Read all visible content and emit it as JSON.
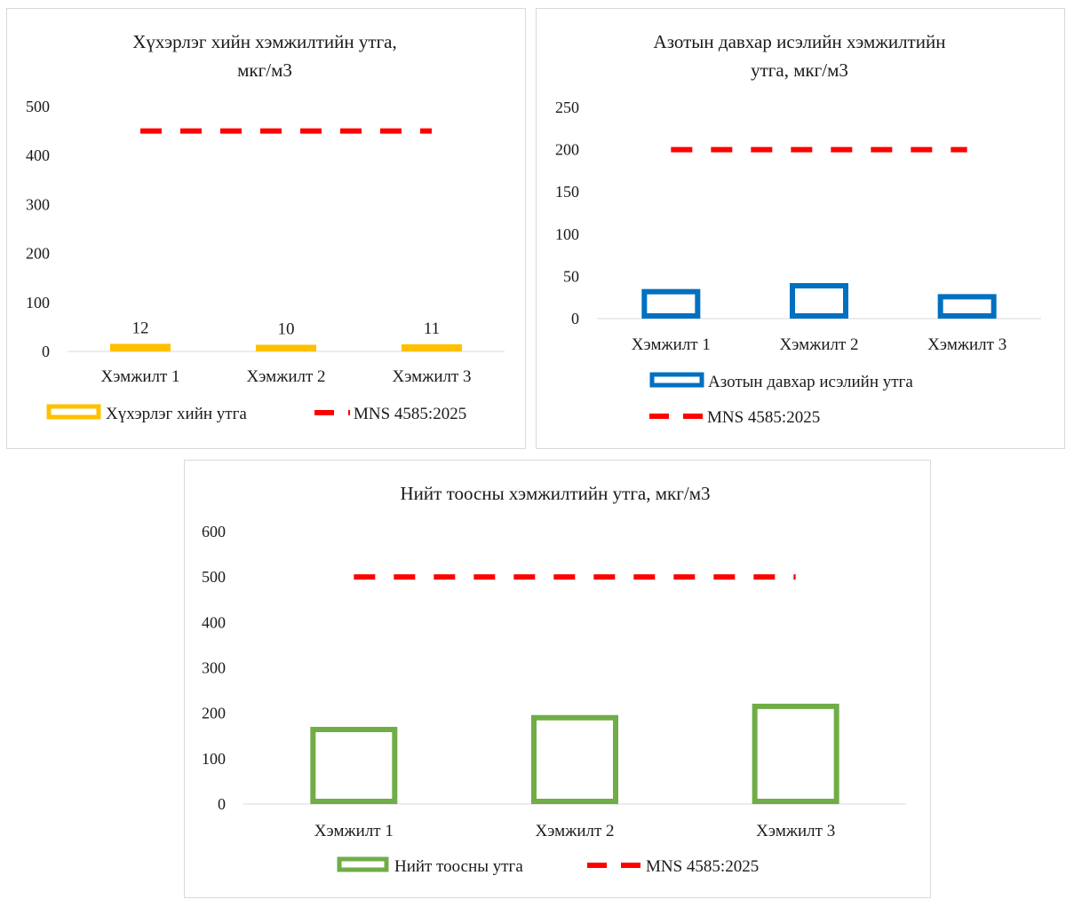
{
  "colors": {
    "yellow_series": "#ffc000",
    "blue_series": "#0070c0",
    "green_series": "#70ad47",
    "standard_line": "#ff0000",
    "axis": "#d9d9d9",
    "text": "#1a1a1a"
  },
  "chart_data": [
    {
      "type": "bar",
      "title": "Хүхэрлэг хийн хэмжилтийн утга, мкг/м3",
      "title_lines": [
        "Хүхэрлэг хийн хэмжилтийн утга,",
        "мкг/м3"
      ],
      "categories": [
        "Хэмжилт 1",
        "Хэмжилт 2",
        "Хэмжилт 3"
      ],
      "series": [
        {
          "name": "Хүхэрлэг хийн утга",
          "kind": "bar",
          "values": [
            12,
            10,
            11
          ],
          "color": "#ffc000",
          "data_labels": true
        },
        {
          "name": "MNS 4585:2025",
          "kind": "line-dashed",
          "values": [
            450,
            450,
            450
          ],
          "color": "#ff0000",
          "data_labels": false
        }
      ],
      "ylim": [
        0,
        500
      ],
      "yticks": [
        0,
        100,
        200,
        300,
        400,
        500
      ],
      "grid": false,
      "legend_position": "bottom"
    },
    {
      "type": "bar",
      "title": "Азотын давхар исэлийн хэмжилтийн утга, мкг/м3",
      "title_lines": [
        "Азотын давхар исэлийн хэмжилтийн",
        "утга, мкг/м3"
      ],
      "categories": [
        "Хэмжилт 1",
        "Хэмжилт 2",
        "Хэмжилт 3"
      ],
      "series": [
        {
          "name": "Азотын давхар исэлийн утга",
          "kind": "bar",
          "values": [
            35,
            42,
            29
          ],
          "color": "#0070c0",
          "data_labels": false
        },
        {
          "name": "MNS 4585:2025",
          "kind": "line-dashed",
          "values": [
            200,
            200,
            200
          ],
          "color": "#ff0000",
          "data_labels": false
        }
      ],
      "ylim": [
        0,
        250
      ],
      "yticks": [
        0,
        50,
        100,
        150,
        200,
        250
      ],
      "grid": false,
      "legend_position": "bottom"
    },
    {
      "type": "bar",
      "title": "Нийт тоосны хэмжилтийн утга, мкг/м3",
      "title_lines": [
        "Нийт тоосны хэмжилтийн утга, мкг/м3"
      ],
      "categories": [
        "Хэмжилт 1",
        "Хэмжилт 2",
        "Хэмжилт 3"
      ],
      "series": [
        {
          "name": "Нийт тоосны утга",
          "kind": "bar",
          "values": [
            170,
            196,
            221
          ],
          "color": "#70ad47",
          "data_labels": false
        },
        {
          "name": "MNS 4585:2025",
          "kind": "line-dashed",
          "values": [
            500,
            500,
            500
          ],
          "color": "#ff0000",
          "data_labels": false
        }
      ],
      "ylim": [
        0,
        600
      ],
      "yticks": [
        0,
        100,
        200,
        300,
        400,
        500,
        600
      ],
      "grid": false,
      "legend_position": "bottom"
    }
  ]
}
